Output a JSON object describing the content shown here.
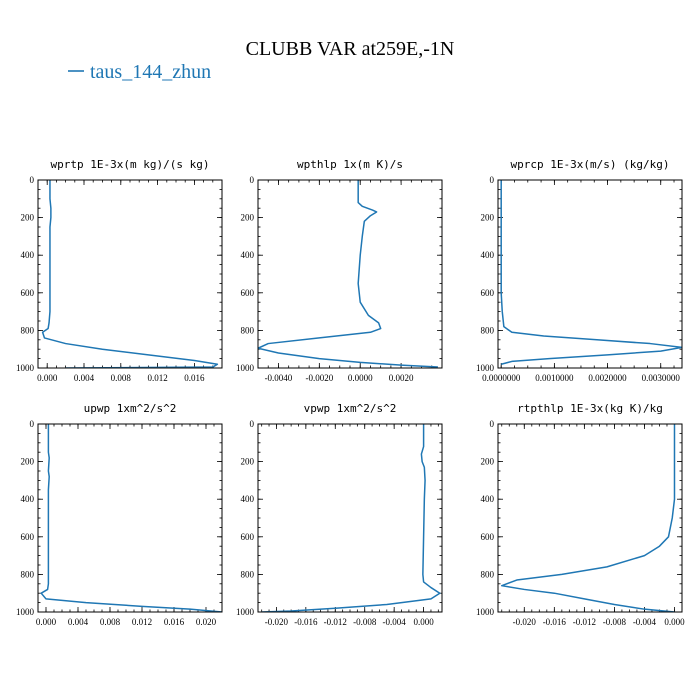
{
  "figure": {
    "title": "CLUBB VAR at259E,-1N",
    "legend": {
      "label": "taus_144_zhun",
      "color": "#1f77b4",
      "placement": "top-left"
    }
  },
  "chart_data": [
    {
      "type": "line",
      "title": "wprtp  1E-3x(m kg)/(s kg)",
      "xlim": [
        -0.001,
        0.019
      ],
      "ylim": [
        1000,
        0
      ],
      "xticks": [
        0.0,
        0.004,
        0.008,
        0.012,
        0.016
      ],
      "xtick_labels": [
        "0.000",
        "0.004",
        "0.008",
        "0.012",
        "0.016"
      ],
      "yticks": [
        0,
        200,
        400,
        600,
        800,
        1000
      ],
      "ytick_labels": [
        "0",
        "200",
        "400",
        "600",
        "800",
        "1000"
      ],
      "series": [
        {
          "x": [
            0.0003,
            0.0003,
            0.0004,
            0.0004,
            0.0004,
            0.0003,
            0.0003,
            0.0003,
            0.0003,
            0.0002,
            0.0001,
            -0.0005,
            -0.0003,
            0.002,
            0.006,
            0.011,
            0.016,
            0.0185,
            0.018,
            0.002
          ],
          "y": [
            0,
            100,
            150,
            180,
            200,
            250,
            400,
            600,
            700,
            760,
            790,
            810,
            840,
            870,
            900,
            930,
            960,
            980,
            995,
            1000
          ]
        }
      ]
    },
    {
      "type": "line",
      "title": "wpthlp  1x(m K)/s",
      "xlim": [
        -0.005,
        0.004
      ],
      "ylim": [
        1000,
        0
      ],
      "xticks": [
        -0.004,
        -0.002,
        0.0,
        0.002
      ],
      "xtick_labels": [
        "-0.0040",
        "-0.0020",
        "0.0000",
        "0.0020"
      ],
      "yticks": [
        0,
        200,
        400,
        600,
        800,
        1000
      ],
      "ytick_labels": [
        "0",
        "200",
        "400",
        "600",
        "800",
        "1000"
      ],
      "series": [
        {
          "x": [
            -0.0001,
            -0.0001,
            -0.0001,
            0.0001,
            0.0006,
            0.0008,
            0.0005,
            0.0002,
            0.0001,
            0.0,
            -0.0001,
            0.0,
            0.0004,
            0.0009,
            0.001,
            0.0005,
            -0.002,
            -0.0045,
            -0.005,
            -0.004,
            -0.002,
            0.0,
            0.002,
            0.0038
          ],
          "y": [
            0,
            100,
            120,
            140,
            160,
            170,
            190,
            220,
            300,
            400,
            550,
            650,
            720,
            760,
            790,
            810,
            840,
            870,
            895,
            920,
            950,
            970,
            985,
            995
          ]
        }
      ]
    },
    {
      "type": "line",
      "title": "wprcp  1E-3x(m/s) (kg/kg)",
      "xlim": [
        -6e-05,
        0.0034
      ],
      "ylim": [
        1000,
        0
      ],
      "xticks": [
        0.0,
        0.001,
        0.002,
        0.003
      ],
      "xtick_labels": [
        "0.0000000",
        "0.0010000",
        "0.0020000",
        "0.0030000"
      ],
      "yticks": [
        0,
        200,
        400,
        600,
        800,
        1000
      ],
      "ytick_labels": [
        "0",
        "200",
        "400",
        "600",
        "800",
        "1000"
      ],
      "series": [
        {
          "x": [
            0.0,
            0.0,
            0.0,
            2e-05,
            5e-05,
            0.0002,
            0.0008,
            0.0018,
            0.0028,
            0.0034,
            0.003,
            0.002,
            0.0009,
            0.0002,
            0.0
          ],
          "y": [
            0,
            200,
            600,
            700,
            780,
            810,
            830,
            850,
            870,
            890,
            910,
            930,
            950,
            965,
            980
          ]
        }
      ]
    },
    {
      "type": "line",
      "title": "upwp  1xm^2/s^2",
      "xlim": [
        -0.001,
        0.022
      ],
      "ylim": [
        1000,
        0
      ],
      "xticks": [
        0.0,
        0.004,
        0.008,
        0.012,
        0.016,
        0.02
      ],
      "xtick_labels": [
        "0.000",
        "0.004",
        "0.008",
        "0.012",
        "0.016",
        "0.020"
      ],
      "yticks": [
        0,
        200,
        400,
        600,
        800,
        1000
      ],
      "ytick_labels": [
        "0",
        "200",
        "400",
        "600",
        "800",
        "1000"
      ],
      "series": [
        {
          "x": [
            0.0003,
            0.0003,
            0.0004,
            0.0003,
            0.0004,
            0.0003,
            0.0003,
            0.0003,
            0.0003,
            0.0002,
            -0.0006,
            0.0,
            0.005,
            0.012,
            0.018,
            0.022
          ],
          "y": [
            0,
            150,
            180,
            250,
            280,
            350,
            500,
            700,
            850,
            880,
            900,
            930,
            950,
            970,
            985,
            1000
          ]
        }
      ]
    },
    {
      "type": "line",
      "title": "vpwp  1xm^2/s^2",
      "xlim": [
        -0.0225,
        0.0025
      ],
      "ylim": [
        1000,
        0
      ],
      "xticks": [
        -0.02,
        -0.016,
        -0.012,
        -0.008,
        -0.004,
        0.0
      ],
      "xtick_labels": [
        "-0.020",
        "-0.016",
        "-0.012",
        "-0.008",
        "-0.004",
        "0.000"
      ],
      "yticks": [
        0,
        200,
        400,
        600,
        800,
        1000
      ],
      "ytick_labels": [
        "0",
        "200",
        "400",
        "600",
        "800",
        "1000"
      ],
      "series": [
        {
          "x": [
            0.0,
            0.0,
            -0.0003,
            -0.0002,
            0.0001,
            0.0002,
            0.0001,
            0.0,
            -0.0001,
            0.0,
            0.001,
            0.0022,
            0.001,
            -0.005,
            -0.012,
            -0.018,
            -0.022
          ],
          "y": [
            0,
            120,
            160,
            200,
            230,
            300,
            400,
            600,
            800,
            840,
            870,
            900,
            930,
            960,
            980,
            995,
            1000
          ]
        }
      ]
    },
    {
      "type": "line",
      "title": "rtpthlp  1E-3x(kg K)/kg",
      "xlim": [
        -0.0235,
        0.001
      ],
      "ylim": [
        1000,
        0
      ],
      "xticks": [
        -0.02,
        -0.016,
        -0.012,
        -0.008,
        -0.004,
        0.0
      ],
      "xtick_labels": [
        "-0.020",
        "-0.016",
        "-0.012",
        "-0.008",
        "-0.004",
        "0.000"
      ],
      "yticks": [
        0,
        200,
        400,
        600,
        800,
        1000
      ],
      "ytick_labels": [
        "0",
        "200",
        "400",
        "600",
        "800",
        "1000"
      ],
      "series": [
        {
          "x": [
            0.0,
            0.0,
            0.0,
            -0.0003,
            -0.0008,
            -0.002,
            -0.004,
            -0.009,
            -0.015,
            -0.021,
            -0.023,
            -0.02,
            -0.016,
            -0.012,
            -0.008,
            -0.004,
            0.0
          ],
          "y": [
            0,
            200,
            400,
            500,
            600,
            650,
            700,
            760,
            800,
            830,
            860,
            880,
            900,
            930,
            960,
            985,
            1000
          ]
        }
      ]
    }
  ]
}
